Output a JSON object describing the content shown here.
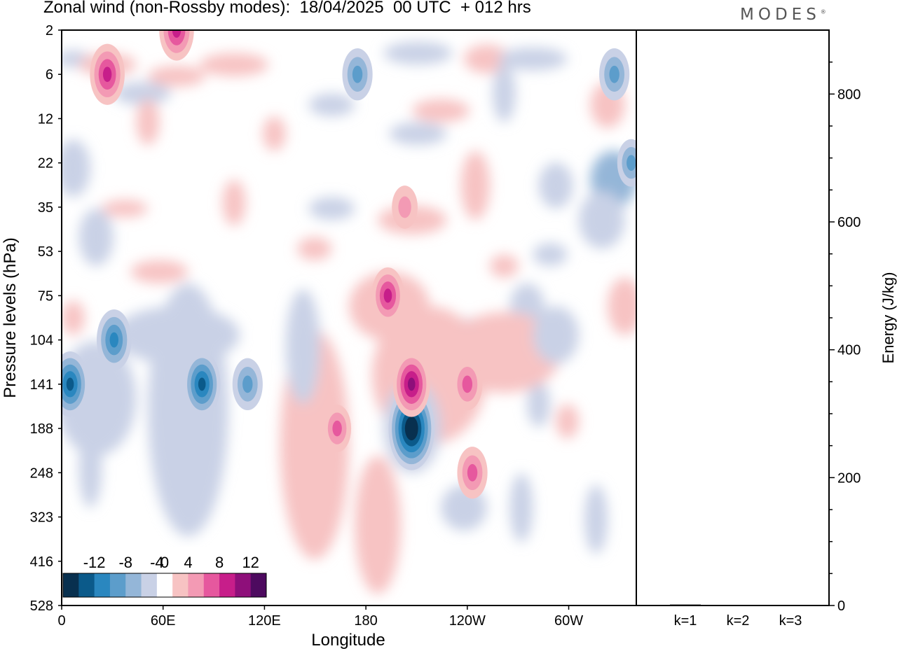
{
  "header": {
    "title": "Zonal wind (non-Rossby modes):  18/04/2025  00 UTC  + 012 hrs",
    "logo_text": "MODES",
    "logo_mark": "®"
  },
  "chart_data": [
    {
      "type": "heatmap",
      "title": "Zonal wind (non-Rossby modes):  18/04/2025  00 UTC  + 012 hrs",
      "xlabel": "Longitude",
      "ylabel": "Pressure levels (hPa)",
      "x_ticks": [
        "0",
        "60E",
        "120E",
        "180",
        "120W",
        "60W"
      ],
      "x_tick_values": [
        0,
        60,
        120,
        180,
        240,
        300
      ],
      "xlim": [
        0,
        340
      ],
      "y_ticks": [
        "2",
        "6",
        "12",
        "22",
        "35",
        "53",
        "75",
        "104",
        "141",
        "188",
        "248",
        "323",
        "416",
        "528"
      ],
      "y_scale": "model levels (nonlinear, top = 2 hPa)",
      "colorbar": {
        "labels": [
          "-12",
          "-8",
          "-4",
          "0",
          "4",
          "8",
          "12"
        ],
        "levels": [
          -14,
          -12,
          -10,
          -8,
          -6,
          -4,
          -2,
          2,
          4,
          6,
          8,
          10,
          12,
          14
        ],
        "colors": [
          "#08304f",
          "#0b5a8a",
          "#2a87bf",
          "#5c9dcb",
          "#94b6d8",
          "#c9d1e6",
          "#ffffff",
          "#f7c3c3",
          "#f39ab4",
          "#e6589e",
          "#c71e8a",
          "#8e0f7a",
          "#4d0a5f"
        ],
        "placement": "bottom-left"
      },
      "features": [
        {
          "lon": 207,
          "level": "188",
          "value": -13,
          "sign": "easterly"
        },
        {
          "lon": 207,
          "level": "141",
          "value": 9,
          "sign": "westerly"
        },
        {
          "lon": 83,
          "level": "141",
          "value": -9,
          "sign": "easterly"
        },
        {
          "lon": 5,
          "level": "141",
          "value": -9,
          "sign": "easterly"
        },
        {
          "lon": 31,
          "level": "104",
          "value": -8,
          "sign": "easterly"
        },
        {
          "lon": 110,
          "level": "141",
          "value": -6,
          "sign": "easterly"
        },
        {
          "lon": 193,
          "level": "75",
          "value": 7,
          "sign": "westerly"
        },
        {
          "lon": 243,
          "level": "248",
          "value": 6,
          "sign": "westerly"
        },
        {
          "lon": 163,
          "level": "188",
          "value": 5,
          "sign": "westerly"
        },
        {
          "lon": 240,
          "level": "141",
          "value": 6,
          "sign": "westerly"
        },
        {
          "lon": 27,
          "level": "6",
          "value": 8,
          "sign": "westerly"
        },
        {
          "lon": 68,
          "level": "2",
          "value": 8,
          "sign": "westerly"
        },
        {
          "lon": 175,
          "level": "6",
          "value": -6,
          "sign": "easterly"
        },
        {
          "lon": 327,
          "level": "6",
          "value": -6,
          "sign": "easterly"
        },
        {
          "lon": 337,
          "level": "22",
          "value": -5,
          "sign": "easterly"
        },
        {
          "lon": 203,
          "level": "35",
          "value": 4,
          "sign": "westerly"
        }
      ]
    },
    {
      "type": "bar",
      "categories": [
        "k=1",
        "k=2",
        "k=3"
      ],
      "values": [
        1.5,
        1.0,
        1.0
      ],
      "ylabel": "Energy (J/kg)",
      "ylim": [
        0,
        900
      ],
      "y_ticks": [
        "0",
        "200",
        "400",
        "600",
        "800"
      ]
    }
  ]
}
